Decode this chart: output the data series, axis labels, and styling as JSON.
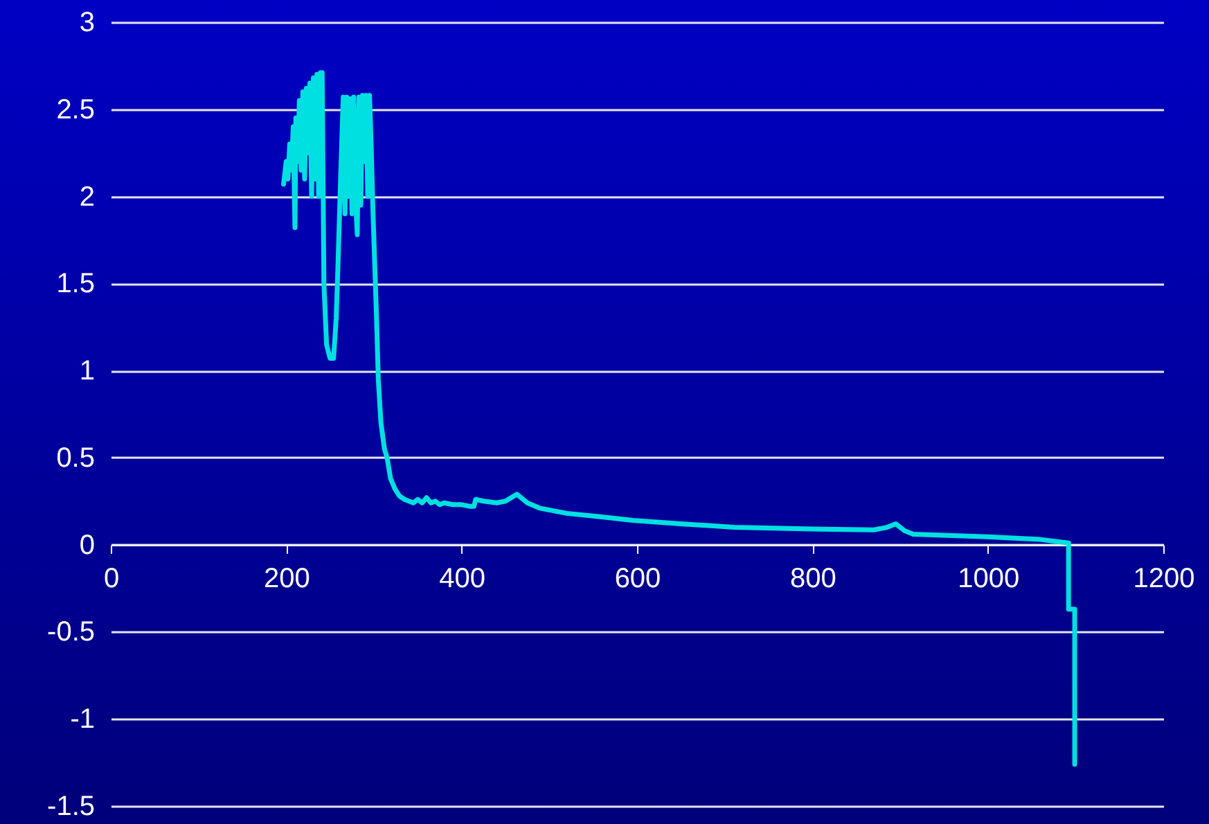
{
  "chart_data": {
    "type": "line",
    "xlim": [
      0,
      1200
    ],
    "xticks": [
      0,
      200,
      400,
      600,
      800,
      1000,
      1200
    ],
    "ylim": [
      -1.5,
      3
    ],
    "yticks": [
      -1.5,
      -1,
      -0.5,
      0,
      0.5,
      1,
      1.5,
      2,
      2.5,
      3
    ],
    "grid": "y",
    "marker": "none",
    "line_style": "solid",
    "series": [
      {
        "color": "#00e0e0",
        "x": [
          197,
          200,
          202,
          204,
          206,
          208,
          210,
          211,
          213,
          215,
          217,
          219,
          221,
          223,
          225,
          227,
          229,
          231,
          233,
          235,
          237,
          239,
          241,
          243,
          246,
          250,
          254,
          257,
          259,
          262,
          265,
          267,
          269,
          271,
          273,
          275,
          277,
          279,
          281,
          283,
          285,
          287,
          289,
          291,
          293,
          295,
          297,
          299,
          301,
          303,
          305,
          308,
          312,
          315,
          319,
          324,
          329,
          335,
          340,
          345,
          350,
          355,
          360,
          365,
          370,
          375,
          380,
          390,
          400,
          410,
          414,
          416,
          425,
          440,
          450,
          463,
          475,
          489,
          520,
          560,
          595,
          650,
          711,
          800,
          870,
          885,
          895,
          905,
          915,
          1000,
          1060,
          1092,
          1092,
          1099,
          1099
        ],
        "values": [
          2.07,
          2.2,
          2.1,
          2.3,
          2.15,
          2.4,
          1.82,
          2.45,
          2.2,
          2.55,
          2.15,
          2.6,
          2.1,
          2.62,
          2.25,
          2.65,
          2.0,
          2.68,
          2.1,
          2.7,
          2.0,
          2.71,
          2.71,
          1.5,
          1.15,
          1.07,
          1.07,
          1.3,
          1.6,
          2.1,
          2.57,
          1.9,
          2.57,
          2.0,
          2.56,
          1.9,
          2.57,
          2.0,
          1.78,
          2.57,
          1.95,
          2.58,
          2.2,
          2.58,
          2.0,
          2.58,
          2.27,
          1.9,
          1.6,
          1.3,
          0.95,
          0.7,
          0.55,
          0.5,
          0.38,
          0.32,
          0.28,
          0.26,
          0.25,
          0.24,
          0.26,
          0.24,
          0.27,
          0.24,
          0.25,
          0.23,
          0.24,
          0.23,
          0.23,
          0.22,
          0.22,
          0.26,
          0.25,
          0.24,
          0.25,
          0.29,
          0.24,
          0.21,
          0.18,
          0.16,
          0.14,
          0.12,
          0.1,
          0.09,
          0.085,
          0.1,
          0.12,
          0.08,
          0.06,
          0.045,
          0.03,
          0.01,
          -0.37,
          -0.37,
          -1.26
        ]
      }
    ]
  }
}
